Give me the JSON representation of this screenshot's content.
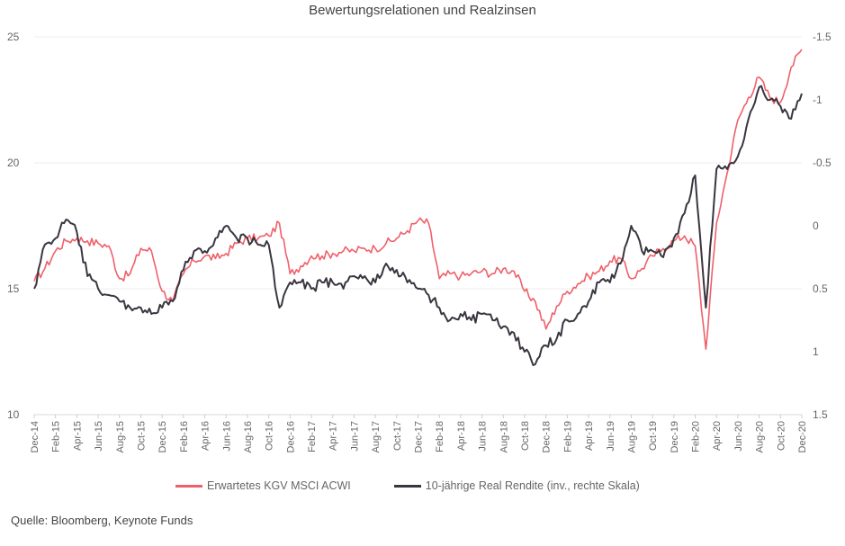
{
  "chart_data": {
    "type": "line",
    "title": "Bewertungsrelationen und Realzinsen",
    "xlabel": "",
    "ylabel_left": "",
    "ylabel_right": "",
    "x_tick_labels": [
      "Dec-14",
      "Feb-15",
      "Apr-15",
      "Jun-15",
      "Aug-15",
      "Oct-15",
      "Dec-15",
      "Feb-16",
      "Apr-16",
      "Jun-16",
      "Aug-16",
      "Oct-16",
      "Dec-16",
      "Feb-17",
      "Apr-17",
      "Jun-17",
      "Aug-17",
      "Oct-17",
      "Dec-17",
      "Feb-18",
      "Apr-18",
      "Jun-18",
      "Aug-18",
      "Oct-18",
      "Dec-18",
      "Feb-19",
      "Apr-19",
      "Jun-19",
      "Aug-19",
      "Oct-19",
      "Dec-19",
      "Feb-20",
      "Apr-20",
      "Jun-20",
      "Aug-20",
      "Oct-20",
      "Dec-20"
    ],
    "y_left": {
      "range": [
        10,
        25
      ],
      "ticks": [
        "10",
        "15",
        "20",
        "25"
      ]
    },
    "y_right": {
      "range": [
        -1.5,
        1.5
      ],
      "inverted": true,
      "ticks": [
        "-1.5",
        "-1",
        "-0.5",
        "0",
        "0.5",
        "1",
        "1.5"
      ]
    },
    "grid": true,
    "legend_position": "bottom",
    "x_months": [
      "Dec-14",
      "Jan-15",
      "Feb-15",
      "Mar-15",
      "Apr-15",
      "May-15",
      "Jun-15",
      "Jul-15",
      "Aug-15",
      "Sep-15",
      "Oct-15",
      "Nov-15",
      "Dec-15",
      "Jan-16",
      "Feb-16",
      "Mar-16",
      "Apr-16",
      "May-16",
      "Jun-16",
      "Jul-16",
      "Aug-16",
      "Sep-16",
      "Oct-16",
      "Nov-16",
      "Dec-16",
      "Jan-17",
      "Feb-17",
      "Mar-17",
      "Apr-17",
      "May-17",
      "Jun-17",
      "Jul-17",
      "Aug-17",
      "Sep-17",
      "Oct-17",
      "Nov-17",
      "Dec-17",
      "Jan-18",
      "Feb-18",
      "Mar-18",
      "Apr-18",
      "May-18",
      "Jun-18",
      "Jul-18",
      "Aug-18",
      "Sep-18",
      "Oct-18",
      "Nov-18",
      "Dec-18",
      "Jan-19",
      "Feb-19",
      "Mar-19",
      "Apr-19",
      "May-19",
      "Jun-19",
      "Jul-19",
      "Aug-19",
      "Sep-19",
      "Oct-19",
      "Nov-19",
      "Dec-19",
      "Jan-20",
      "Feb-20",
      "Mar-20",
      "Apr-20",
      "May-20",
      "Jun-20",
      "Jul-20",
      "Aug-20",
      "Sep-20",
      "Oct-20",
      "Nov-20",
      "Dec-20"
    ],
    "series": [
      {
        "name": "Erwartetes KGV MSCI ACWI",
        "axis": "left",
        "color": "#f0606a",
        "values": [
          15.3,
          15.8,
          16.5,
          16.9,
          17.0,
          16.9,
          16.8,
          16.7,
          15.4,
          15.6,
          16.6,
          16.5,
          14.9,
          14.5,
          15.6,
          16.1,
          16.3,
          16.2,
          16.4,
          16.8,
          17.0,
          17.0,
          17.1,
          17.6,
          15.6,
          15.9,
          16.3,
          16.3,
          16.4,
          16.5,
          16.5,
          16.6,
          16.6,
          16.8,
          17.0,
          17.3,
          17.7,
          17.6,
          15.4,
          15.6,
          15.5,
          15.6,
          15.7,
          15.6,
          15.8,
          15.7,
          14.9,
          14.5,
          13.4,
          14.3,
          14.9,
          15.2,
          15.5,
          15.7,
          16.1,
          16.2,
          15.4,
          15.8,
          16.3,
          16.6,
          16.9,
          17.1,
          16.7,
          12.6,
          17.6,
          19.6,
          21.7,
          22.6,
          23.4,
          22.6,
          22.4,
          23.8,
          24.5
        ]
      },
      {
        "name": "10-jährige Real Rendite (inv., rechte Skala)",
        "axis": "right",
        "color": "#3a3540",
        "values": [
          0.5,
          0.15,
          0.1,
          -0.05,
          0.05,
          0.4,
          0.5,
          0.55,
          0.6,
          0.65,
          0.65,
          0.7,
          0.65,
          0.6,
          0.35,
          0.2,
          0.2,
          0.1,
          0.0,
          0.1,
          0.1,
          0.15,
          0.15,
          0.65,
          0.45,
          0.45,
          0.5,
          0.45,
          0.45,
          0.5,
          0.4,
          0.4,
          0.45,
          0.3,
          0.35,
          0.45,
          0.5,
          0.55,
          0.65,
          0.75,
          0.7,
          0.75,
          0.7,
          0.75,
          0.8,
          0.85,
          1.0,
          1.1,
          0.95,
          0.9,
          0.75,
          0.7,
          0.6,
          0.45,
          0.45,
          0.3,
          0.0,
          0.2,
          0.2,
          0.25,
          0.1,
          -0.1,
          -0.4,
          0.65,
          -0.45,
          -0.45,
          -0.55,
          -0.85,
          -1.1,
          -1.0,
          -0.95,
          -0.85,
          -1.05
        ]
      }
    ]
  },
  "legend": {
    "items": [
      {
        "label": "Erwartetes KGV MSCI ACWI",
        "color": "#f0606a"
      },
      {
        "label": "10-jährige Real Rendite (inv., rechte Skala)",
        "color": "#3a3540"
      }
    ]
  },
  "source": "Quelle: Bloomberg,  Keynote Funds"
}
